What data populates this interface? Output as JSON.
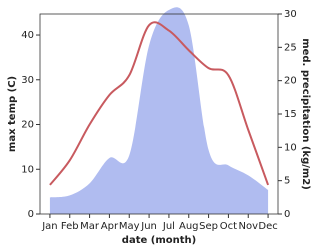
{
  "chart_data": {
    "type": "combo",
    "categories": [
      "Jan",
      "Feb",
      "Mar",
      "Apr",
      "May",
      "Jun",
      "Jul",
      "Aug",
      "Sep",
      "Oct",
      "Nov",
      "Dec"
    ],
    "x_label": "date (month)",
    "y_label": "max temp (C)",
    "y2_label": "med. precipitation (kg/m2)",
    "ylim": [
      0,
      44.7
    ],
    "yticks": [
      0,
      10,
      20,
      30,
      40
    ],
    "y2lim": [
      0,
      30
    ],
    "y2ticks": [
      0,
      5,
      10,
      15,
      20,
      25,
      30
    ],
    "series": [
      {
        "name": "med. precipitation",
        "type": "area",
        "axis": "y2",
        "color": "#b0bcf0",
        "values": [
          2.5,
          2.8,
          4.6,
          8.4,
          8.8,
          25.3,
          30.6,
          28.3,
          9.6,
          7.3,
          5.8,
          3.6
        ]
      },
      {
        "name": "max temp",
        "type": "line",
        "color": "#c85a5f",
        "values": [
          6.5,
          12,
          20,
          26.6,
          31,
          42.2,
          41,
          36.6,
          32.6,
          31,
          18.8,
          6.5
        ]
      }
    ]
  }
}
